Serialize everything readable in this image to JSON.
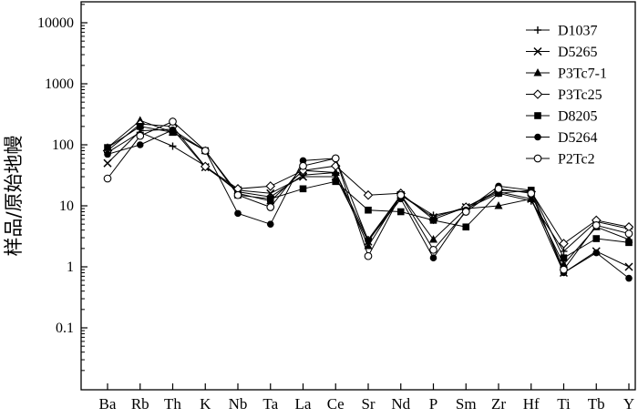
{
  "chart_data": {
    "type": "line",
    "title": "",
    "xlabel": "",
    "ylabel": "样品/原始地幔",
    "y_scale": "log",
    "ylim": [
      0.01,
      20000
    ],
    "y_ticks": [
      0.1,
      1,
      10,
      100,
      1000,
      10000
    ],
    "y_tick_labels": [
      "0.1",
      "1",
      "10",
      "100",
      "1000",
      "10000"
    ],
    "categories": [
      "Ba",
      "Rb",
      "Th",
      "K",
      "Nb",
      "Ta",
      "La",
      "Ce",
      "Sr",
      "Nd",
      "P",
      "Sm",
      "Zr",
      "Hf",
      "Ti",
      "Tb",
      "Y"
    ],
    "legend_position": "top-right",
    "series": [
      {
        "name": "D1037",
        "marker": "plus",
        "values": [
          75,
          160,
          95,
          45,
          17,
          14,
          32,
          35,
          2.8,
          15,
          7,
          9,
          16,
          12,
          1.8,
          5.5,
          4.2
        ]
      },
      {
        "name": "D5265",
        "marker": "cross",
        "values": [
          50,
          170,
          180,
          43,
          18,
          16,
          30,
          30,
          2.6,
          15,
          6.5,
          9.5,
          17,
          13,
          0.8,
          1.8,
          1.0
        ]
      },
      {
        "name": "P3Tc7-1",
        "marker": "triangle-filled",
        "values": [
          90,
          250,
          160,
          80,
          16,
          12,
          38,
          35,
          2.2,
          15,
          2.8,
          9,
          10,
          13,
          1.1,
          4.5,
          2.8
        ]
      },
      {
        "name": "P3Tc25",
        "marker": "diamond-open",
        "values": [
          80,
          220,
          200,
          44,
          19,
          21,
          38,
          45,
          15,
          16,
          6,
          9.5,
          18,
          17,
          2.4,
          5.8,
          4.5
        ]
      },
      {
        "name": "D8205",
        "marker": "square-filled",
        "values": [
          90,
          200,
          160,
          80,
          15,
          13,
          19,
          25,
          8.5,
          8,
          5.8,
          4.5,
          16,
          18,
          1.4,
          2.9,
          2.5
        ]
      },
      {
        "name": "D5264",
        "marker": "circle-filled",
        "values": [
          70,
          100,
          175,
          80,
          7.5,
          5,
          55,
          60,
          2.7,
          13,
          1.4,
          8.5,
          21,
          18,
          0.8,
          1.7,
          0.65
        ]
      },
      {
        "name": "P2Tc2",
        "marker": "circle-open",
        "values": [
          28,
          140,
          240,
          80,
          15,
          9.5,
          45,
          60,
          1.5,
          15,
          1.9,
          8,
          19,
          16,
          0.9,
          4.8,
          3.5
        ]
      }
    ]
  }
}
